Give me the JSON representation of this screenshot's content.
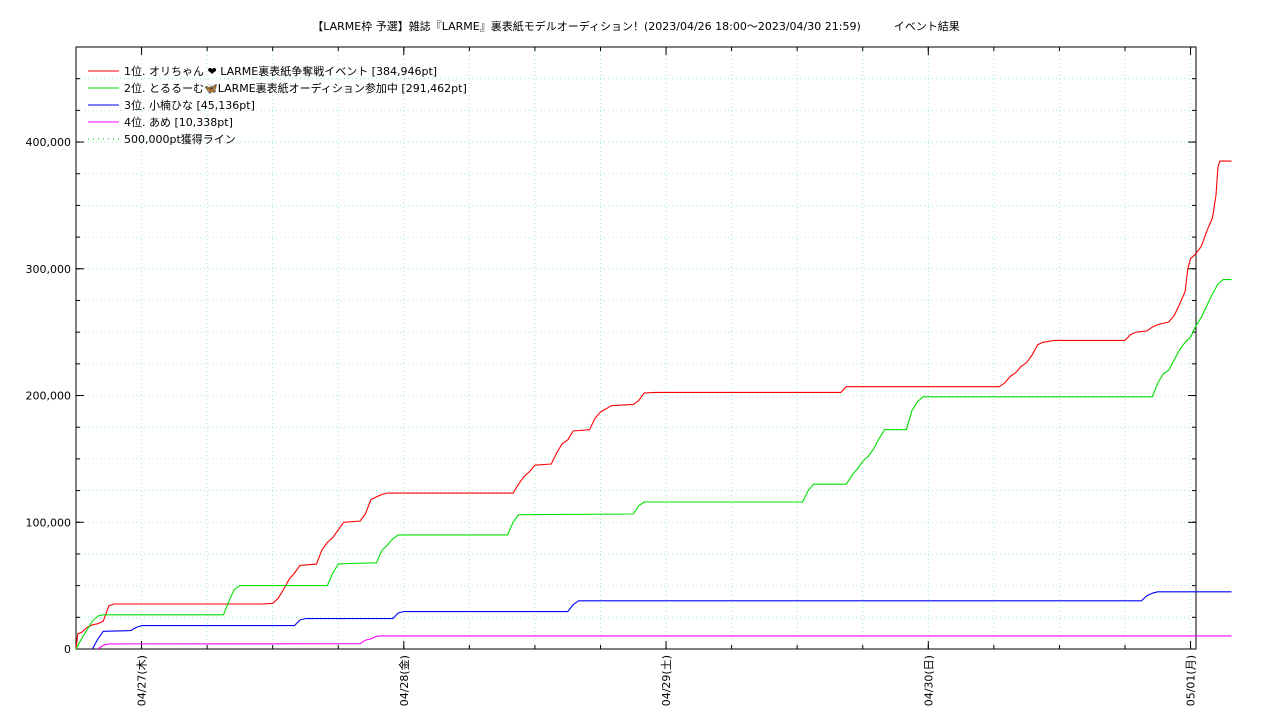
{
  "chart_data": {
    "type": "line",
    "title": "【LARME枠 予選】雑誌『LARME』裏表紙モデルオーディション！(2023/04/26 18:00～2023/04/30 21:59)　　　イベント結果",
    "xlabel": "",
    "ylabel": "",
    "x_range": [
      "2023-04-26 18:00",
      "2023-05-01 00:30"
    ],
    "ylim": [
      0,
      475000
    ],
    "grid": true,
    "legend_position": "top-left",
    "x_ticks": [
      {
        "x": "2023-04-27 00:00",
        "label": "04/27(木)"
      },
      {
        "x": "2023-04-28 00:00",
        "label": "04/28(金)"
      },
      {
        "x": "2023-04-29 00:00",
        "label": "04/29(土)"
      },
      {
        "x": "2023-04-30 00:00",
        "label": "04/30(日)"
      },
      {
        "x": "2023-05-01 00:00",
        "label": "05/01(月)"
      }
    ],
    "y_ticks": [
      {
        "y": 0,
        "label": "0"
      },
      {
        "y": 100000,
        "label": "100,000"
      },
      {
        "y": 200000,
        "label": "200,000"
      },
      {
        "y": 300000,
        "label": "300,000"
      },
      {
        "y": 400000,
        "label": "400,000"
      }
    ],
    "series": [
      {
        "name": "1位. オリちゃん ❤ LARME裏表紙争奪戦イベント [384,946pt]",
        "color": "#ff0000",
        "points": [
          [
            "2023-04-26 18:00",
            0
          ],
          [
            "2023-04-26 18:10",
            12000
          ],
          [
            "2023-04-26 18:30",
            13000
          ],
          [
            "2023-04-26 19:00",
            17000
          ],
          [
            "2023-04-26 19:30",
            19000
          ],
          [
            "2023-04-26 20:00",
            20000
          ],
          [
            "2023-04-26 20:30",
            22000
          ],
          [
            "2023-04-26 21:00",
            34000
          ],
          [
            "2023-04-26 21:30",
            35500
          ],
          [
            "2023-04-27 11:00",
            35500
          ],
          [
            "2023-04-27 12:00",
            36000
          ],
          [
            "2023-04-27 12:30",
            40000
          ],
          [
            "2023-04-27 13:00",
            47000
          ],
          [
            "2023-04-27 13:30",
            55000
          ],
          [
            "2023-04-27 14:00",
            60000
          ],
          [
            "2023-04-27 14:30",
            66000
          ],
          [
            "2023-04-27 16:00",
            67000
          ],
          [
            "2023-04-27 16:30",
            78000
          ],
          [
            "2023-04-27 17:00",
            84000
          ],
          [
            "2023-04-27 17:30",
            88000
          ],
          [
            "2023-04-27 18:00",
            94000
          ],
          [
            "2023-04-27 18:30",
            100000
          ],
          [
            "2023-04-27 20:00",
            101000
          ],
          [
            "2023-04-27 20:30",
            107000
          ],
          [
            "2023-04-27 21:00",
            118000
          ],
          [
            "2023-04-27 21:30",
            120000
          ],
          [
            "2023-04-27 22:00",
            122000
          ],
          [
            "2023-04-27 22:30",
            123000
          ],
          [
            "2023-04-28 10:00",
            123000
          ],
          [
            "2023-04-28 10:30",
            130000
          ],
          [
            "2023-04-28 11:00",
            136000
          ],
          [
            "2023-04-28 11:30",
            140000
          ],
          [
            "2023-04-28 12:00",
            145000
          ],
          [
            "2023-04-28 13:30",
            146000
          ],
          [
            "2023-04-28 14:00",
            155000
          ],
          [
            "2023-04-28 14:30",
            162000
          ],
          [
            "2023-04-28 15:00",
            165000
          ],
          [
            "2023-04-28 15:30",
            172000
          ],
          [
            "2023-04-28 17:00",
            173000
          ],
          [
            "2023-04-28 17:30",
            182000
          ],
          [
            "2023-04-28 18:00",
            187000
          ],
          [
            "2023-04-28 19:00",
            192000
          ],
          [
            "2023-04-28 21:00",
            193000
          ],
          [
            "2023-04-28 21:30",
            196000
          ],
          [
            "2023-04-28 22:00",
            202000
          ],
          [
            "2023-04-28 23:00",
            202500
          ],
          [
            "2023-04-29 16:00",
            202500
          ],
          [
            "2023-04-29 16:30",
            207000
          ],
          [
            "2023-04-30 06:30",
            207000
          ],
          [
            "2023-04-30 07:00",
            210000
          ],
          [
            "2023-04-30 07:30",
            215000
          ],
          [
            "2023-04-30 08:00",
            218000
          ],
          [
            "2023-04-30 08:30",
            223000
          ],
          [
            "2023-04-30 09:00",
            226000
          ],
          [
            "2023-04-30 09:30",
            232000
          ],
          [
            "2023-04-30 10:00",
            240000
          ],
          [
            "2023-04-30 10:30",
            242000
          ],
          [
            "2023-04-30 11:30",
            243500
          ],
          [
            "2023-04-30 18:00",
            243500
          ],
          [
            "2023-04-30 18:30",
            248000
          ],
          [
            "2023-04-30 19:00",
            250000
          ],
          [
            "2023-04-30 20:00",
            251000
          ],
          [
            "2023-04-30 20:30",
            254000
          ],
          [
            "2023-04-30 21:00",
            256000
          ],
          [
            "2023-04-30 22:00",
            258000
          ],
          [
            "2023-04-30 22:30",
            263000
          ],
          [
            "2023-04-30 23:00",
            272000
          ],
          [
            "2023-04-30 23:30",
            282000
          ],
          [
            "2023-04-30 23:45",
            300000
          ],
          [
            "2023-05-01 00:00",
            308000
          ],
          [
            "2023-05-01 00:30",
            312000
          ],
          [
            "2023-05-01 01:00",
            318000
          ],
          [
            "2023-05-01 01:30",
            330000
          ],
          [
            "2023-05-01 02:00",
            340000
          ],
          [
            "2023-05-01 02:20",
            358000
          ],
          [
            "2023-05-01 02:30",
            380000
          ],
          [
            "2023-05-01 02:40",
            384946
          ],
          [
            "2023-05-01 03:45",
            384946
          ]
        ]
      },
      {
        "name": "2位. とるるーむ🦋LARME裏表紙オーディション参加中 [291,462pt]",
        "color": "#00e000",
        "points": [
          [
            "2023-04-26 18:00",
            0
          ],
          [
            "2023-04-26 18:30",
            8000
          ],
          [
            "2023-04-26 19:00",
            15000
          ],
          [
            "2023-04-26 19:30",
            22000
          ],
          [
            "2023-04-26 20:00",
            26000
          ],
          [
            "2023-04-26 20:30",
            27000
          ],
          [
            "2023-04-27 07:30",
            27000
          ],
          [
            "2023-04-27 08:00",
            38000
          ],
          [
            "2023-04-27 08:30",
            47000
          ],
          [
            "2023-04-27 09:00",
            50000
          ],
          [
            "2023-04-27 17:00",
            50000
          ],
          [
            "2023-04-27 17:30",
            60000
          ],
          [
            "2023-04-27 18:00",
            67000
          ],
          [
            "2023-04-27 19:00",
            67500
          ],
          [
            "2023-04-27 21:30",
            68000
          ],
          [
            "2023-04-27 22:00",
            78000
          ],
          [
            "2023-04-27 22:30",
            82000
          ],
          [
            "2023-04-27 23:00",
            87000
          ],
          [
            "2023-04-27 23:30",
            90000
          ],
          [
            "2023-04-28 09:30",
            90000
          ],
          [
            "2023-04-28 10:00",
            100000
          ],
          [
            "2023-04-28 10:30",
            106000
          ],
          [
            "2023-04-28 21:00",
            106500
          ],
          [
            "2023-04-28 21:30",
            113000
          ],
          [
            "2023-04-28 22:00",
            116000
          ],
          [
            "2023-04-29 12:30",
            116000
          ],
          [
            "2023-04-29 13:00",
            125000
          ],
          [
            "2023-04-29 13:30",
            130000
          ],
          [
            "2023-04-29 16:30",
            130000
          ],
          [
            "2023-04-29 17:00",
            137000
          ],
          [
            "2023-04-29 17:30",
            142000
          ],
          [
            "2023-04-29 18:00",
            148000
          ],
          [
            "2023-04-29 18:30",
            152000
          ],
          [
            "2023-04-29 19:00",
            158000
          ],
          [
            "2023-04-29 19:30",
            166000
          ],
          [
            "2023-04-29 20:00",
            173000
          ],
          [
            "2023-04-29 22:00",
            173000
          ],
          [
            "2023-04-29 22:30",
            188000
          ],
          [
            "2023-04-29 23:00",
            195000
          ],
          [
            "2023-04-29 23:30",
            199000
          ],
          [
            "2023-04-30 20:30",
            199000
          ],
          [
            "2023-04-30 21:00",
            210000
          ],
          [
            "2023-04-30 21:30",
            217000
          ],
          [
            "2023-04-30 22:00",
            220000
          ],
          [
            "2023-04-30 22:30",
            228000
          ],
          [
            "2023-04-30 23:00",
            236000
          ],
          [
            "2023-04-30 23:30",
            242000
          ],
          [
            "2023-05-01 00:00",
            246000
          ],
          [
            "2023-05-01 00:30",
            255000
          ],
          [
            "2023-05-01 01:00",
            262000
          ],
          [
            "2023-05-01 01:30",
            271000
          ],
          [
            "2023-05-01 02:00",
            280000
          ],
          [
            "2023-05-01 02:30",
            288000
          ],
          [
            "2023-05-01 03:00",
            291462
          ],
          [
            "2023-05-01 03:45",
            291462
          ]
        ]
      },
      {
        "name": "3位. 小楠ひな [45,136pt]",
        "color": "#0000ff",
        "points": [
          [
            "2023-04-26 19:30",
            0
          ],
          [
            "2023-04-26 20:00",
            8000
          ],
          [
            "2023-04-26 20:30",
            14000
          ],
          [
            "2023-04-26 23:00",
            14500
          ],
          [
            "2023-04-26 23:30",
            17000
          ],
          [
            "2023-04-27 00:00",
            18500
          ],
          [
            "2023-04-27 14:00",
            18500
          ],
          [
            "2023-04-27 14:30",
            23000
          ],
          [
            "2023-04-27 15:00",
            24000
          ],
          [
            "2023-04-27 23:00",
            24000
          ],
          [
            "2023-04-27 23:30",
            28500
          ],
          [
            "2023-04-28 00:00",
            29500
          ],
          [
            "2023-04-28 15:00",
            29500
          ],
          [
            "2023-04-28 15:30",
            35000
          ],
          [
            "2023-04-28 16:00",
            38000
          ],
          [
            "2023-04-30 19:30",
            38000
          ],
          [
            "2023-04-30 20:00",
            42000
          ],
          [
            "2023-04-30 20:30",
            44000
          ],
          [
            "2023-04-30 21:00",
            45136
          ],
          [
            "2023-05-01 03:45",
            45136
          ]
        ]
      },
      {
        "name": "4位. あめ [10,338pt]",
        "color": "#ff00ff",
        "points": [
          [
            "2023-04-26 20:00",
            0
          ],
          [
            "2023-04-26 20:30",
            3000
          ],
          [
            "2023-04-26 21:00",
            4000
          ],
          [
            "2023-04-27 20:00",
            4200
          ],
          [
            "2023-04-27 20:30",
            7000
          ],
          [
            "2023-04-27 21:00",
            8000
          ],
          [
            "2023-04-27 21:30",
            10000
          ],
          [
            "2023-04-27 22:00",
            10338
          ],
          [
            "2023-05-01 03:45",
            10338
          ]
        ]
      },
      {
        "name": "500,000pt獲得ライン",
        "color": "#00c000",
        "dashed": true,
        "points": []
      }
    ]
  }
}
